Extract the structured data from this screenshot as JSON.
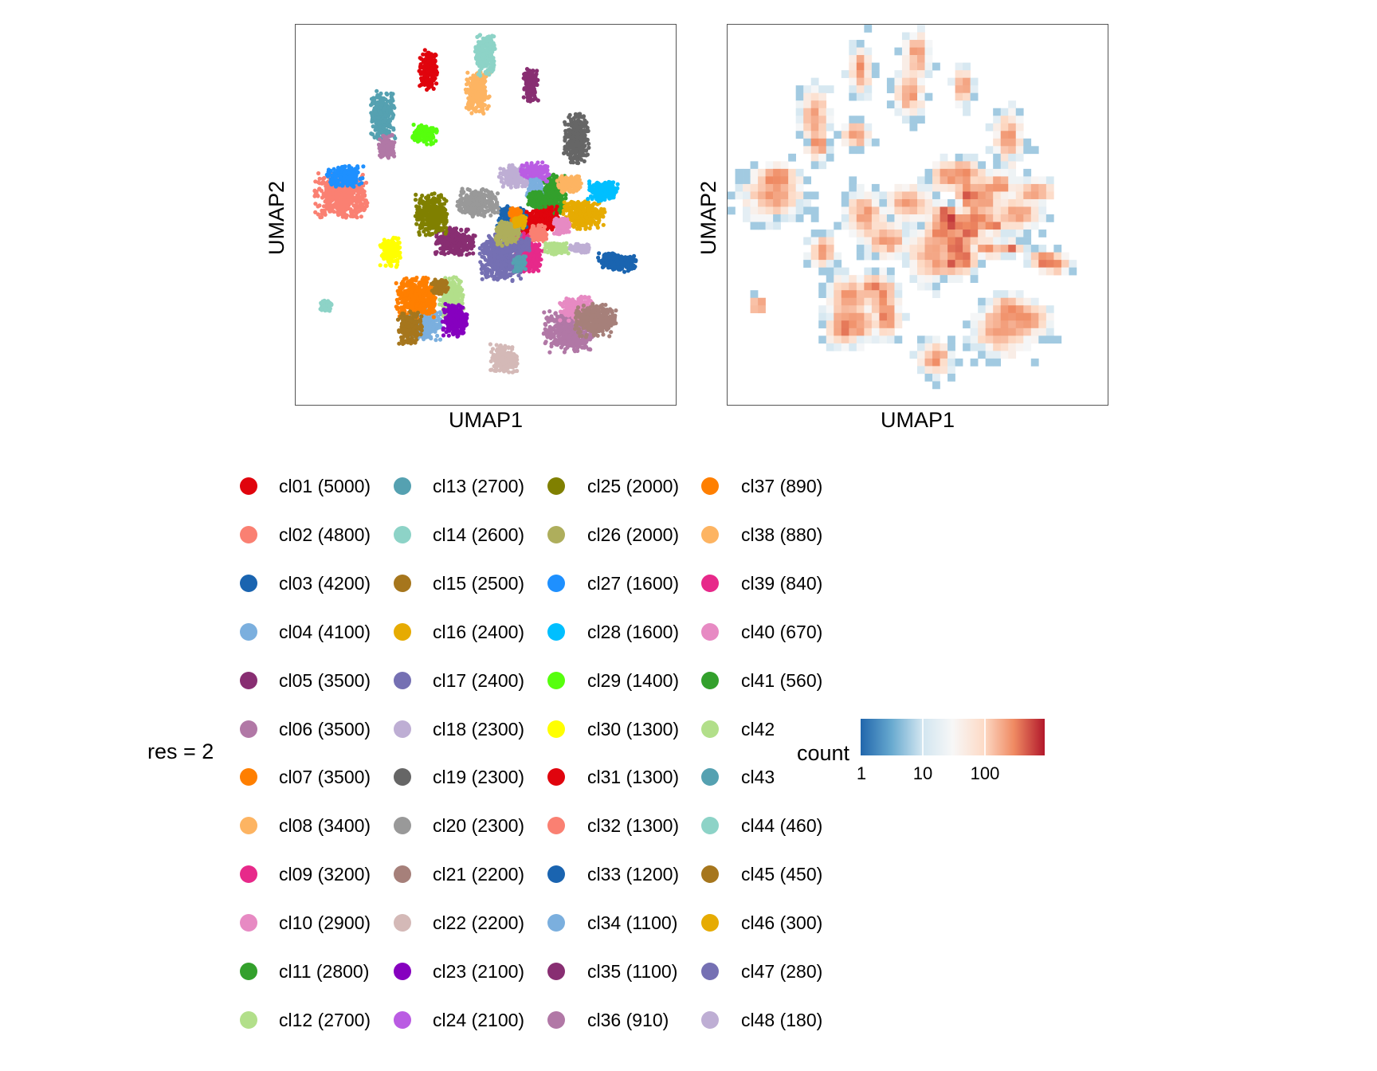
{
  "chart_data": [
    {
      "type": "scatter",
      "panel": "left",
      "title": "",
      "xlabel": "UMAP1",
      "ylabel": "UMAP2",
      "xlim": [
        0,
        100
      ],
      "ylim": [
        0,
        100
      ],
      "grid": false,
      "point_groups": [
        {
          "cluster": "cl01",
          "color": "#E0040D",
          "blobs": [
            [
              35,
              88,
              2.2,
              5
            ],
            [
              62,
              47,
              4,
              3.5
            ]
          ]
        },
        {
          "cluster": "cl02",
          "color": "#FA8072",
          "blobs": [
            [
              12,
              55,
              6.5,
              5.5
            ]
          ]
        },
        {
          "cluster": "cl03",
          "color": "#1A64B0",
          "blobs": [
            [
              57,
              49,
              3.5,
              3
            ],
            [
              86,
              37,
              3.5,
              2
            ]
          ]
        },
        {
          "cluster": "cl04",
          "color": "#7BAFDE",
          "blobs": [
            [
              34,
              21,
              4,
              4
            ]
          ]
        },
        {
          "cluster": "cl05",
          "color": "#882E72",
          "blobs": [
            [
              42,
              43,
              5,
              3.5
            ]
          ]
        },
        {
          "cluster": "cl06",
          "color": "#B178A6",
          "blobs": [
            [
              72,
              19,
              6,
              5
            ]
          ]
        },
        {
          "cluster": "cl07",
          "color": "#FF7F00",
          "blobs": [
            [
              32,
              28,
              5,
              5
            ]
          ]
        },
        {
          "cluster": "cl08",
          "color": "#FDB462",
          "blobs": [
            [
              48,
              82,
              3,
              5
            ]
          ]
        },
        {
          "cluster": "cl09",
          "color": "#E7298A",
          "blobs": [
            [
              61,
              40,
              3,
              5
            ]
          ]
        },
        {
          "cluster": "cl10",
          "color": "#E78AC3",
          "blobs": [
            [
              74,
              25,
              4,
              3
            ]
          ]
        },
        {
          "cluster": "cl11",
          "color": "#33A02C",
          "blobs": [
            [
              68,
              55,
              3,
              5
            ]
          ]
        },
        {
          "cluster": "cl12",
          "color": "#B2DF8A",
          "blobs": [
            [
              41,
              28,
              3,
              5
            ]
          ]
        },
        {
          "cluster": "cl13",
          "color": "#55A1B1",
          "blobs": [
            [
              23,
              76,
              3,
              6
            ]
          ]
        },
        {
          "cluster": "cl14",
          "color": "#8DD3C7",
          "blobs": [
            [
              50,
              92,
              2.5,
              5
            ]
          ]
        },
        {
          "cluster": "cl15",
          "color": "#A6761D",
          "blobs": [
            [
              30,
              20,
              3,
              4
            ]
          ]
        },
        {
          "cluster": "cl16",
          "color": "#E6AB02",
          "blobs": [
            [
              76,
              50,
              5,
              3.5
            ]
          ]
        },
        {
          "cluster": "cl17",
          "color": "#7570B3",
          "blobs": [
            [
              54,
              39,
              5,
              6
            ]
          ]
        },
        {
          "cluster": "cl18",
          "color": "#BEAED4",
          "blobs": [
            [
              58,
              60,
              4,
              3
            ]
          ]
        },
        {
          "cluster": "cl19",
          "color": "#666666",
          "blobs": [
            [
              74,
              70,
              3,
              6
            ]
          ]
        },
        {
          "cluster": "cl20",
          "color": "#999999",
          "blobs": [
            [
              48,
              53,
              5,
              3.5
            ]
          ]
        },
        {
          "cluster": "cl21",
          "color": "#A6807A",
          "blobs": [
            [
              79,
              22,
              5,
              4
            ]
          ]
        },
        {
          "cluster": "cl22",
          "color": "#D4B9B7",
          "blobs": [
            [
              55,
              12,
              3.5,
              3.5
            ]
          ]
        },
        {
          "cluster": "cl23",
          "color": "#8600BF",
          "blobs": [
            [
              42,
              22,
              3,
              4
            ]
          ]
        },
        {
          "cluster": "cl24",
          "color": "#BA5CE3",
          "blobs": [
            [
              63,
              61,
              3.5,
              2.5
            ]
          ]
        },
        {
          "cluster": "cl25",
          "color": "#808000",
          "blobs": [
            [
              36,
              50,
              4,
              5
            ]
          ]
        },
        {
          "cluster": "cl26",
          "color": "#AEAE5C",
          "blobs": [
            [
              56,
              45,
              3,
              3
            ]
          ]
        },
        {
          "cluster": "cl27",
          "color": "#1E90FF",
          "blobs": [
            [
              13,
              60,
              4.5,
              2.5
            ]
          ]
        },
        {
          "cluster": "cl28",
          "color": "#00BFFF",
          "blobs": [
            [
              81,
              56,
              4,
              2.5
            ]
          ]
        },
        {
          "cluster": "cl29",
          "color": "#56FF0D",
          "blobs": [
            [
              34,
              71,
              3,
              2.5
            ]
          ]
        },
        {
          "cluster": "cl30",
          "color": "#FFFF00",
          "blobs": [
            [
              25,
              40,
              2.5,
              3.5
            ]
          ]
        },
        {
          "cluster": "cl31",
          "color": "#E0040D",
          "blobs": [
            [
              66,
              49,
              3,
              3
            ]
          ]
        },
        {
          "cluster": "cl32",
          "color": "#FA8072",
          "blobs": [
            [
              64,
              45,
              2,
              2
            ]
          ]
        },
        {
          "cluster": "cl33",
          "color": "#1A64B0",
          "blobs": [
            [
              83,
              38,
              3,
              2
            ]
          ]
        },
        {
          "cluster": "cl34",
          "color": "#7BAFDE",
          "blobs": [
            [
              63,
              56,
              2,
              3
            ]
          ]
        },
        {
          "cluster": "cl35",
          "color": "#882E72",
          "blobs": [
            [
              62,
              84,
              1.8,
              4
            ]
          ]
        },
        {
          "cluster": "cl36",
          "color": "#B178A6",
          "blobs": [
            [
              24,
              68,
              2,
              3
            ]
          ]
        },
        {
          "cluster": "cl37",
          "color": "#FF7F00",
          "blobs": [
            [
              58,
              50,
              1.5,
              1.5
            ]
          ]
        },
        {
          "cluster": "cl38",
          "color": "#FDB462",
          "blobs": [
            [
              72,
              58,
              3,
              2
            ]
          ]
        },
        {
          "cluster": "cl39",
          "color": "#E7298A",
          "blobs": [
            [
              63,
              38,
              2,
              3
            ]
          ]
        },
        {
          "cluster": "cl40",
          "color": "#E78AC3",
          "blobs": [
            [
              70,
              47,
              2,
              2
            ]
          ]
        },
        {
          "cluster": "cl41",
          "color": "#33A02C",
          "blobs": [
            [
              64,
              54,
              2.5,
              2
            ]
          ]
        },
        {
          "cluster": "cl42",
          "color": "#B2DF8A",
          "blobs": [
            [
              69,
              41,
              3,
              1.5
            ]
          ]
        },
        {
          "cluster": "cl43",
          "color": "#55A1B1",
          "blobs": [
            [
              59,
              37,
              1.5,
              2
            ]
          ]
        },
        {
          "cluster": "cl44",
          "color": "#8DD3C7",
          "blobs": [
            [
              8,
              26,
              1.5,
              1.3
            ]
          ]
        },
        {
          "cluster": "cl45",
          "color": "#A6761D",
          "blobs": [
            [
              38,
              31,
              2,
              2
            ]
          ]
        },
        {
          "cluster": "cl46",
          "color": "#E6AB02",
          "blobs": [
            [
              59,
              48,
              1.5,
              1.5
            ]
          ]
        },
        {
          "cluster": "cl47",
          "color": "#7570B3",
          "blobs": [
            [
              60,
              42,
              1.5,
              1.5
            ]
          ]
        },
        {
          "cluster": "cl48",
          "color": "#BEAED4",
          "blobs": [
            [
              75,
              41,
              2.5,
              1.2
            ]
          ]
        }
      ]
    },
    {
      "type": "heatmap",
      "panel": "right",
      "title": "",
      "xlabel": "UMAP1",
      "ylabel": "UMAP2",
      "grid_cols": 50,
      "grid_rows": 50,
      "color_scale": "log",
      "colorbar_title": "count",
      "colorbar_ticks": [
        1,
        10,
        100
      ],
      "colorbar_range": [
        1,
        1000
      ],
      "colors": [
        "#2166AC",
        "#67A9CF",
        "#D1E5F0",
        "#F7F7F7",
        "#FDDBC7",
        "#EF8A62",
        "#B2182B"
      ],
      "hotspots": [
        {
          "col": 10,
          "row": 45,
          "count": 40
        },
        {
          "col": 18,
          "row": 41,
          "count": 20
        },
        {
          "col": 34,
          "row": 42,
          "count": 8
        },
        {
          "col": 23,
          "row": 47,
          "count": 60
        },
        {
          "col": 6,
          "row": 30,
          "count": 60
        },
        {
          "col": 5,
          "row": 20,
          "count": 40
        },
        {
          "col": 11,
          "row": 20,
          "count": 100
        },
        {
          "col": 19,
          "row": 16,
          "count": 80
        },
        {
          "col": 28,
          "row": 19,
          "count": 50
        },
        {
          "col": 18,
          "row": 30,
          "count": 40
        },
        {
          "col": 25,
          "row": 30,
          "count": 200
        },
        {
          "col": 33,
          "row": 31,
          "count": 60
        },
        {
          "col": 39,
          "row": 31,
          "count": 15
        },
        {
          "col": 12,
          "row": 31,
          "count": 15
        },
        {
          "col": 3,
          "row": 15,
          "count": 8
        },
        {
          "col": 38,
          "row": 12,
          "count": 60
        },
        {
          "col": 32,
          "row": 14,
          "count": 30
        }
      ]
    }
  ],
  "legend": {
    "title": "res = 2",
    "items": [
      {
        "label": "cl01 (5000)",
        "color": "#E0040D"
      },
      {
        "label": "cl02 (4800)",
        "color": "#FA8072"
      },
      {
        "label": "cl03 (4200)",
        "color": "#1A64B0"
      },
      {
        "label": "cl04 (4100)",
        "color": "#7BAFDE"
      },
      {
        "label": "cl05 (3500)",
        "color": "#882E72"
      },
      {
        "label": "cl06 (3500)",
        "color": "#B178A6"
      },
      {
        "label": "cl07 (3500)",
        "color": "#FF7F00"
      },
      {
        "label": "cl08 (3400)",
        "color": "#FDB462"
      },
      {
        "label": "cl09 (3200)",
        "color": "#E7298A"
      },
      {
        "label": "cl10 (2900)",
        "color": "#E78AC3"
      },
      {
        "label": "cl11 (2800)",
        "color": "#33A02C"
      },
      {
        "label": "cl12 (2700)",
        "color": "#B2DF8A"
      },
      {
        "label": "cl13 (2700)",
        "color": "#55A1B1"
      },
      {
        "label": "cl14 (2600)",
        "color": "#8DD3C7"
      },
      {
        "label": "cl15 (2500)",
        "color": "#A6761D"
      },
      {
        "label": "cl16 (2400)",
        "color": "#E6AB02"
      },
      {
        "label": "cl17 (2400)",
        "color": "#7570B3"
      },
      {
        "label": "cl18 (2300)",
        "color": "#BEAED4"
      },
      {
        "label": "cl19 (2300)",
        "color": "#666666"
      },
      {
        "label": "cl20 (2300)",
        "color": "#999999"
      },
      {
        "label": "cl21 (2200)",
        "color": "#A6807A"
      },
      {
        "label": "cl22 (2200)",
        "color": "#D4B9B7"
      },
      {
        "label": "cl23 (2100)",
        "color": "#8600BF"
      },
      {
        "label": "cl24 (2100)",
        "color": "#BA5CE3"
      },
      {
        "label": "cl25 (2000)",
        "color": "#808000"
      },
      {
        "label": "cl26 (2000)",
        "color": "#AEAE5C"
      },
      {
        "label": "cl27 (1600)",
        "color": "#1E90FF"
      },
      {
        "label": "cl28 (1600)",
        "color": "#00BFFF"
      },
      {
        "label": "cl29 (1400)",
        "color": "#56FF0D"
      },
      {
        "label": "cl30 (1300)",
        "color": "#FFFF00"
      },
      {
        "label": "cl31 (1300)",
        "color": "#E0040D"
      },
      {
        "label": "cl32 (1300)",
        "color": "#FA8072"
      },
      {
        "label": "cl33 (1200)",
        "color": "#1A64B0"
      },
      {
        "label": "cl34 (1100)",
        "color": "#7BAFDE"
      },
      {
        "label": "cl35 (1100)",
        "color": "#882E72"
      },
      {
        "label": "cl36 (910)",
        "color": "#B178A6"
      },
      {
        "label": "cl37 (890)",
        "color": "#FF7F00"
      },
      {
        "label": "cl38 (880)",
        "color": "#FDB462"
      },
      {
        "label": "cl39 (840)",
        "color": "#E7298A"
      },
      {
        "label": "cl40 (670)",
        "color": "#E78AC3"
      },
      {
        "label": "cl41 (560)",
        "color": "#33A02C"
      },
      {
        "label": "cl42",
        "color": "#B2DF8A"
      },
      {
        "label": "cl43",
        "color": "#55A1B1"
      },
      {
        "label": "cl44 (460)",
        "color": "#8DD3C7"
      },
      {
        "label": "cl45 (450)",
        "color": "#A6761D"
      },
      {
        "label": "cl46 (300)",
        "color": "#E6AB02"
      },
      {
        "label": "cl47 (280)",
        "color": "#7570B3"
      },
      {
        "label": "cl48 (180)",
        "color": "#BEAED4"
      }
    ]
  },
  "colorbar": {
    "title": "count",
    "tick_labels": [
      "1",
      "10",
      "100"
    ]
  },
  "axes": {
    "left_xlabel": "UMAP1",
    "left_ylabel": "UMAP2",
    "right_xlabel": "UMAP1",
    "right_ylabel": "UMAP2"
  }
}
